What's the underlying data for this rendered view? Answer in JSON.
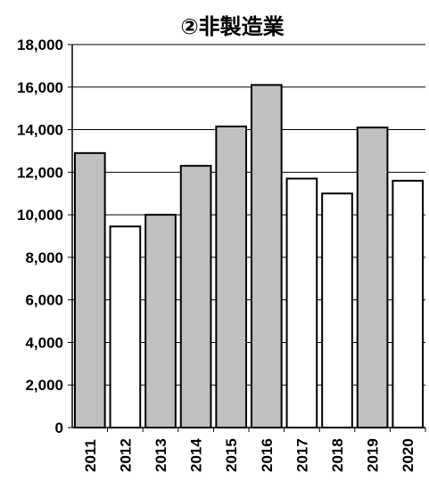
{
  "chart_data": {
    "type": "bar",
    "title": "②非製造業",
    "categories": [
      "2011",
      "2012",
      "2013",
      "2014",
      "2015",
      "2016",
      "2017",
      "2018",
      "2019",
      "2020"
    ],
    "values": [
      12900,
      9450,
      10000,
      12300,
      14150,
      16100,
      11700,
      11000,
      14100,
      11600
    ],
    "bar_fill_colors": [
      "#c0c0c0",
      "#ffffff",
      "#c0c0c0",
      "#c0c0c0",
      "#c0c0c0",
      "#c0c0c0",
      "#ffffff",
      "#ffffff",
      "#c0c0c0",
      "#ffffff"
    ],
    "yticks": [
      "0",
      "2,000",
      "4,000",
      "6,000",
      "8,000",
      "10,000",
      "12,000",
      "14,000",
      "16,000",
      "18,000"
    ],
    "ylim": [
      0,
      18000
    ],
    "xlabel": "",
    "ylabel": "",
    "grid": true
  }
}
